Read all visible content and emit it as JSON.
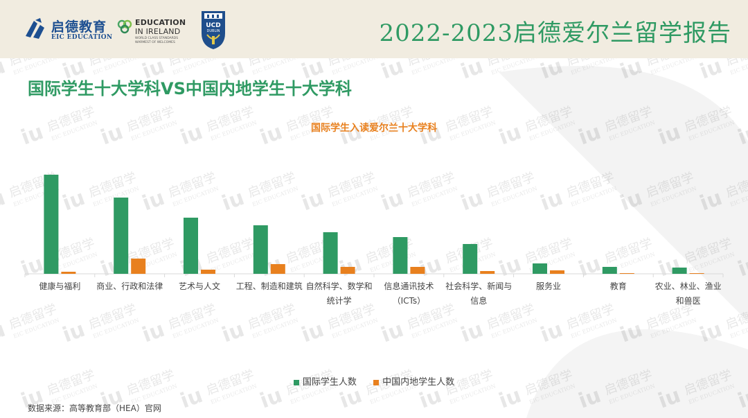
{
  "header": {
    "logo_eic_cn": "启德教育",
    "logo_eic_en": "EIC EDUCATION",
    "logo_eii_line1": "EDUCATION",
    "logo_eii_line2": "IN IRELAND",
    "logo_eii_line3": "WORLD CLASS STANDARDS",
    "logo_eii_line4": "WARMEST OF WELCOMES",
    "logo_ucd_line1": "UCD",
    "logo_ucd_line2": "DUBLIN",
    "report_title": "2022-2023启德爱尔兰留学报告"
  },
  "slide_title": "国际学生十大学科VS中国内地学生十大学科",
  "watermark": {
    "cn": "启德留学",
    "en": "EIC EDUCATION",
    "mark": "iu"
  },
  "source": "数据来源：高等教育部（HEA）官网",
  "colors": {
    "green": "#2f9a63",
    "orange": "#e8801e",
    "header_bg": "#f1ece0"
  },
  "chart_data": {
    "type": "bar",
    "title": "国际学生入读爱尔兰十大学科",
    "categories": [
      [
        "健康与福利"
      ],
      [
        "商业、行政和法律"
      ],
      [
        "艺术与人文"
      ],
      [
        "工程、制造和建筑"
      ],
      [
        "自然科学、数学和",
        "统计学"
      ],
      [
        "信息通讯技术",
        "（ICTs）"
      ],
      [
        "社会科学、新闻与",
        "信息"
      ],
      [
        "服务业"
      ],
      [
        "教育"
      ],
      [
        "农业、林业、渔业",
        "和兽医"
      ]
    ],
    "series": [
      {
        "name": "国际学生人数",
        "color": "#2f9a63",
        "values": [
          143,
          110,
          81,
          70,
          60,
          53,
          43,
          15,
          10,
          9
        ]
      },
      {
        "name": "中国内地学生人数",
        "color": "#e8801e",
        "values": [
          3,
          22,
          6,
          14,
          10,
          10,
          4,
          5,
          1,
          1
        ]
      }
    ],
    "ylim": [
      0,
      150
    ],
    "grid": false,
    "legend_position": "bottom"
  }
}
